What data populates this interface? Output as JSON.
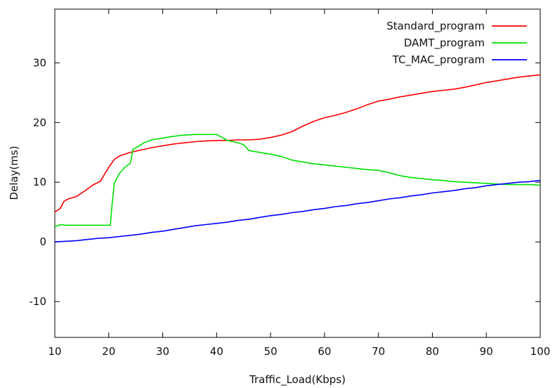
{
  "chart_data": {
    "type": "line",
    "xlabel": "Traffic_Load(Kbps)",
    "ylabel": "Delay(ms)",
    "xlim": [
      10,
      100
    ],
    "ylim": [
      -16,
      39
    ],
    "xticks": [
      10,
      20,
      30,
      40,
      50,
      60,
      70,
      80,
      90,
      100
    ],
    "yticks": [
      -10,
      0,
      10,
      20,
      30
    ],
    "grid": false,
    "legend_position": "top-right",
    "series": [
      {
        "name": "Standard_program",
        "color": "#ff0000",
        "points": [
          [
            10,
            5.0
          ],
          [
            11,
            5.6
          ],
          [
            11.7,
            6.8
          ],
          [
            12.5,
            7.2
          ],
          [
            14,
            7.6
          ],
          [
            15.5,
            8.5
          ],
          [
            17,
            9.5
          ],
          [
            18.5,
            10.2
          ],
          [
            19,
            11.0
          ],
          [
            20,
            12.5
          ],
          [
            21,
            13.8
          ],
          [
            22,
            14.4
          ],
          [
            24,
            15.0
          ],
          [
            26,
            15.4
          ],
          [
            28,
            15.8
          ],
          [
            30,
            16.1
          ],
          [
            32,
            16.4
          ],
          [
            34,
            16.6
          ],
          [
            36,
            16.8
          ],
          [
            38,
            16.9
          ],
          [
            40,
            17.0
          ],
          [
            42,
            17.0
          ],
          [
            44,
            17.1
          ],
          [
            46,
            17.1
          ],
          [
            48,
            17.2
          ],
          [
            50,
            17.5
          ],
          [
            52,
            17.9
          ],
          [
            54,
            18.5
          ],
          [
            56,
            19.4
          ],
          [
            58,
            20.2
          ],
          [
            60,
            20.8
          ],
          [
            62,
            21.2
          ],
          [
            64,
            21.7
          ],
          [
            66,
            22.3
          ],
          [
            68,
            23.0
          ],
          [
            70,
            23.6
          ],
          [
            72,
            23.9
          ],
          [
            74,
            24.3
          ],
          [
            76,
            24.6
          ],
          [
            78,
            24.9
          ],
          [
            80,
            25.2
          ],
          [
            82,
            25.4
          ],
          [
            84,
            25.6
          ],
          [
            86,
            25.9
          ],
          [
            88,
            26.3
          ],
          [
            90,
            26.7
          ],
          [
            92,
            27.0
          ],
          [
            94,
            27.3
          ],
          [
            96,
            27.6
          ],
          [
            98,
            27.8
          ],
          [
            100,
            28.0
          ]
        ]
      },
      {
        "name": "DAMT_program",
        "color": "#00e000",
        "points": [
          [
            10,
            2.5
          ],
          [
            11,
            2.9
          ],
          [
            12,
            2.8
          ],
          [
            14,
            2.8
          ],
          [
            16,
            2.8
          ],
          [
            18,
            2.8
          ],
          [
            20.3,
            2.8
          ],
          [
            20.5,
            5.0
          ],
          [
            21,
            9.8
          ],
          [
            22,
            11.5
          ],
          [
            23,
            12.5
          ],
          [
            24,
            13.2
          ],
          [
            24.5,
            15.5
          ],
          [
            25.5,
            16.0
          ],
          [
            26.5,
            16.6
          ],
          [
            28,
            17.1
          ],
          [
            30,
            17.4
          ],
          [
            32,
            17.7
          ],
          [
            34,
            17.9
          ],
          [
            36,
            18.0
          ],
          [
            38,
            18.0
          ],
          [
            40,
            18.0
          ],
          [
            41,
            17.5
          ],
          [
            42,
            17.0
          ],
          [
            44,
            16.6
          ],
          [
            45,
            16.3
          ],
          [
            46,
            15.3
          ],
          [
            48,
            15.0
          ],
          [
            50,
            14.7
          ],
          [
            52,
            14.3
          ],
          [
            54,
            13.7
          ],
          [
            56,
            13.4
          ],
          [
            58,
            13.1
          ],
          [
            60,
            12.9
          ],
          [
            62,
            12.7
          ],
          [
            64,
            12.5
          ],
          [
            66,
            12.3
          ],
          [
            68,
            12.1
          ],
          [
            70,
            12.0
          ],
          [
            72,
            11.6
          ],
          [
            74,
            11.1
          ],
          [
            76,
            10.8
          ],
          [
            78,
            10.6
          ],
          [
            80,
            10.4
          ],
          [
            82,
            10.3
          ],
          [
            84,
            10.1
          ],
          [
            86,
            10.0
          ],
          [
            88,
            9.9
          ],
          [
            90,
            9.8
          ],
          [
            92,
            9.7
          ],
          [
            94,
            9.6
          ],
          [
            96,
            9.6
          ],
          [
            98,
            9.6
          ],
          [
            100,
            9.5
          ]
        ]
      },
      {
        "name": "TC_MAC_program",
        "color": "#0000ff",
        "points": [
          [
            10,
            0.0
          ],
          [
            12,
            0.1
          ],
          [
            14,
            0.2
          ],
          [
            16,
            0.4
          ],
          [
            18,
            0.6
          ],
          [
            20,
            0.7
          ],
          [
            22,
            0.9
          ],
          [
            24,
            1.1
          ],
          [
            26,
            1.3
          ],
          [
            28,
            1.6
          ],
          [
            30,
            1.8
          ],
          [
            32,
            2.1
          ],
          [
            34,
            2.4
          ],
          [
            36,
            2.7
          ],
          [
            38,
            2.9
          ],
          [
            40,
            3.1
          ],
          [
            42,
            3.3
          ],
          [
            44,
            3.6
          ],
          [
            46,
            3.8
          ],
          [
            48,
            4.1
          ],
          [
            50,
            4.4
          ],
          [
            52,
            4.6
          ],
          [
            54,
            4.9
          ],
          [
            56,
            5.1
          ],
          [
            58,
            5.4
          ],
          [
            60,
            5.6
          ],
          [
            62,
            5.9
          ],
          [
            64,
            6.1
          ],
          [
            66,
            6.4
          ],
          [
            68,
            6.6
          ],
          [
            70,
            6.9
          ],
          [
            72,
            7.2
          ],
          [
            74,
            7.4
          ],
          [
            76,
            7.7
          ],
          [
            78,
            7.9
          ],
          [
            80,
            8.2
          ],
          [
            82,
            8.4
          ],
          [
            84,
            8.6
          ],
          [
            86,
            8.9
          ],
          [
            88,
            9.1
          ],
          [
            90,
            9.4
          ],
          [
            92,
            9.6
          ],
          [
            94,
            9.8
          ],
          [
            96,
            10.0
          ],
          [
            98,
            10.1
          ],
          [
            100,
            10.3
          ]
        ]
      }
    ]
  }
}
